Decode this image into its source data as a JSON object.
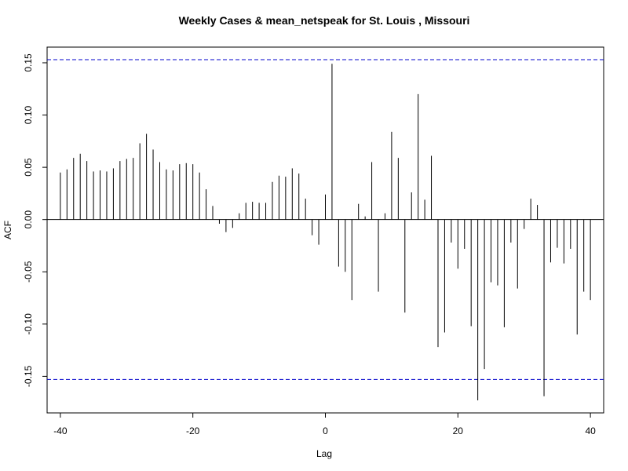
{
  "chart_data": {
    "type": "bar",
    "title": "Weekly Cases & mean_netspeak for St. Louis , Missouri",
    "xlabel": "Lag",
    "ylabel": "ACF",
    "xlim": [
      -42,
      42
    ],
    "ylim": [
      -0.185,
      0.165
    ],
    "x_ticks": [
      {
        "value": -40,
        "label": "-40"
      },
      {
        "value": -20,
        "label": "-20"
      },
      {
        "value": 0,
        "label": "0"
      },
      {
        "value": 20,
        "label": "20"
      },
      {
        "value": 40,
        "label": "40"
      }
    ],
    "y_ticks": [
      {
        "value": -0.15,
        "label": "-0.15"
      },
      {
        "value": -0.1,
        "label": "-0.10"
      },
      {
        "value": -0.05,
        "label": "-0.05"
      },
      {
        "value": 0.0,
        "label": "0.00"
      },
      {
        "value": 0.05,
        "label": "0.05"
      },
      {
        "value": 0.1,
        "label": "0.10"
      },
      {
        "value": 0.15,
        "label": "0.15"
      }
    ],
    "confidence_bound": 0.153,
    "confidence_color": "#0000cc",
    "bar_color": "#000000",
    "grid": false,
    "lags": [
      -40,
      -39,
      -38,
      -37,
      -36,
      -35,
      -34,
      -33,
      -32,
      -31,
      -30,
      -29,
      -28,
      -27,
      -26,
      -25,
      -24,
      -23,
      -22,
      -21,
      -20,
      -19,
      -18,
      -17,
      -16,
      -15,
      -14,
      -13,
      -12,
      -11,
      -10,
      -9,
      -8,
      -7,
      -6,
      -5,
      -4,
      -3,
      -2,
      -1,
      0,
      1,
      2,
      3,
      4,
      5,
      6,
      7,
      8,
      9,
      10,
      11,
      12,
      13,
      14,
      15,
      16,
      17,
      18,
      19,
      20,
      21,
      22,
      23,
      24,
      25,
      26,
      27,
      28,
      29,
      30,
      31,
      32,
      33,
      34,
      35,
      36,
      37,
      38,
      39,
      40
    ],
    "values": [
      0.045,
      0.048,
      0.059,
      0.063,
      0.056,
      0.046,
      0.047,
      0.046,
      0.049,
      0.056,
      0.058,
      0.059,
      0.073,
      0.082,
      0.067,
      0.055,
      0.048,
      0.047,
      0.053,
      0.054,
      0.053,
      0.045,
      0.029,
      0.013,
      -0.004,
      -0.012,
      -0.008,
      0.006,
      0.016,
      0.017,
      0.016,
      0.016,
      0.036,
      0.042,
      0.041,
      0.049,
      0.044,
      0.02,
      -0.015,
      -0.024,
      0.024,
      0.149,
      -0.045,
      -0.05,
      -0.077,
      0.015,
      0.003,
      0.055,
      -0.069,
      0.006,
      0.084,
      0.059,
      -0.089,
      0.026,
      0.12,
      0.019,
      0.061,
      -0.122,
      -0.108,
      -0.022,
      -0.047,
      -0.028,
      -0.102,
      -0.173,
      -0.143,
      -0.06,
      -0.063,
      -0.103,
      -0.022,
      -0.066,
      -0.009,
      0.02,
      0.014,
      -0.169,
      -0.041,
      -0.027,
      -0.042,
      -0.028,
      -0.11,
      -0.069,
      -0.077
    ]
  }
}
